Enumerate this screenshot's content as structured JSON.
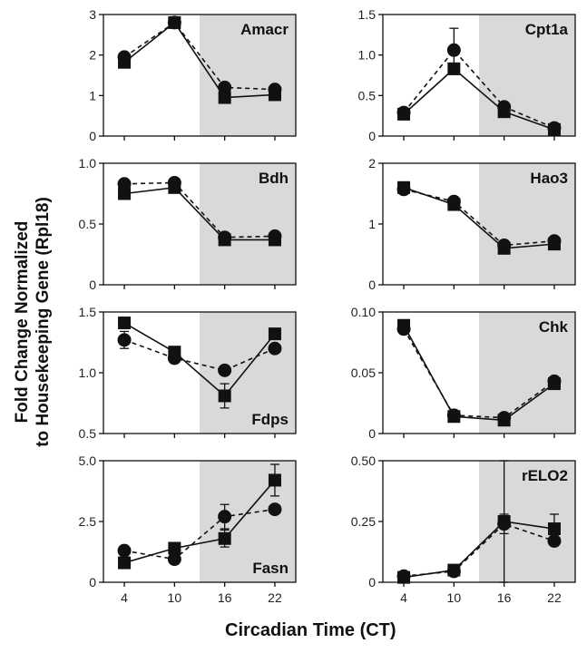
{
  "figure": {
    "ylabel_line1": "Fold Change Normalized",
    "ylabel_line2": "to Housekeeping Gene (Rpl18)",
    "xlabel": "Circadian Time (CT)"
  },
  "colors": {
    "shade": "#d9d9d9",
    "marker": "#111111",
    "line": "#111111",
    "axis": "#111111"
  },
  "chart_data": [
    {
      "type": "line",
      "title": "Amacr",
      "title_pos": "top-right",
      "x": [
        4,
        10,
        16,
        22
      ],
      "xticks": [
        "4",
        "10",
        "16",
        "22"
      ],
      "show_xticks": false,
      "ylim": [
        0,
        3
      ],
      "yticks": [
        0,
        1,
        2,
        3
      ],
      "ytick_labels": [
        "0",
        "1",
        "2",
        "3"
      ],
      "shaded_from_x": 13,
      "series": [
        {
          "marker": "square",
          "line": "solid",
          "values": [
            1.82,
            2.8,
            0.95,
            1.02
          ],
          "errors": [
            0.08,
            0.1,
            0.08,
            0.06
          ]
        },
        {
          "marker": "circle",
          "line": "dashed",
          "values": [
            1.95,
            2.8,
            1.2,
            1.15
          ],
          "errors": [
            0.06,
            0.06,
            0.06,
            0.05
          ]
        }
      ]
    },
    {
      "type": "line",
      "title": "Cpt1a",
      "title_pos": "top-right",
      "x": [
        4,
        10,
        16,
        22
      ],
      "xticks": [
        "4",
        "10",
        "16",
        "22"
      ],
      "show_xticks": false,
      "ylim": [
        0,
        1.5
      ],
      "yticks": [
        0,
        0.5,
        1.0,
        1.5
      ],
      "ytick_labels": [
        "0",
        "0.5",
        "1.0",
        "1.5"
      ],
      "shaded_from_x": 13,
      "series": [
        {
          "marker": "square",
          "line": "solid",
          "values": [
            0.27,
            0.83,
            0.3,
            0.08
          ],
          "errors": [
            0.02,
            0.07,
            0.03,
            0.02
          ]
        },
        {
          "marker": "circle",
          "line": "dashed",
          "values": [
            0.29,
            1.06,
            0.36,
            0.1
          ],
          "errors": [
            0.02,
            0.27,
            0.03,
            0.02
          ]
        }
      ]
    },
    {
      "type": "line",
      "title": "Bdh",
      "title_pos": "top-right",
      "x": [
        4,
        10,
        16,
        22
      ],
      "xticks": [
        "4",
        "10",
        "16",
        "22"
      ],
      "show_xticks": false,
      "ylim": [
        0,
        1.0
      ],
      "yticks": [
        0,
        0.5,
        1.0
      ],
      "ytick_labels": [
        "0",
        "0.5",
        "1.0"
      ],
      "shaded_from_x": 13,
      "series": [
        {
          "marker": "square",
          "line": "solid",
          "values": [
            0.75,
            0.8,
            0.37,
            0.37
          ],
          "errors": [
            0.03,
            0.03,
            0.02,
            0.02
          ]
        },
        {
          "marker": "circle",
          "line": "dashed",
          "values": [
            0.83,
            0.84,
            0.39,
            0.4
          ],
          "errors": [
            0.02,
            0.02,
            0.02,
            0.02
          ]
        }
      ]
    },
    {
      "type": "line",
      "title": "Hao3",
      "title_pos": "top-right",
      "x": [
        4,
        10,
        16,
        22
      ],
      "xticks": [
        "4",
        "10",
        "16",
        "22"
      ],
      "show_xticks": false,
      "ylim": [
        0,
        2
      ],
      "yticks": [
        0,
        1,
        2
      ],
      "ytick_labels": [
        "0",
        "1",
        "2"
      ],
      "shaded_from_x": 13,
      "series": [
        {
          "marker": "square",
          "line": "solid",
          "values": [
            1.6,
            1.32,
            0.6,
            0.67
          ],
          "errors": [
            0.04,
            0.04,
            0.04,
            0.04
          ]
        },
        {
          "marker": "circle",
          "line": "dashed",
          "values": [
            1.57,
            1.37,
            0.65,
            0.72
          ],
          "errors": [
            0.04,
            0.04,
            0.04,
            0.04
          ]
        }
      ]
    },
    {
      "type": "line",
      "title": "Fdps",
      "title_pos": "bottom-right",
      "x": [
        4,
        10,
        16,
        22
      ],
      "xticks": [
        "4",
        "10",
        "16",
        "22"
      ],
      "show_xticks": false,
      "ylim": [
        0.5,
        1.5
      ],
      "yticks": [
        0.5,
        1.0,
        1.5
      ],
      "ytick_labels": [
        "0.5",
        "1.0",
        "1.5"
      ],
      "shaded_from_x": 13,
      "series": [
        {
          "marker": "square",
          "line": "solid",
          "values": [
            1.41,
            1.17,
            0.81,
            1.32
          ],
          "errors": [
            0.03,
            0.03,
            0.1,
            0.03
          ]
        },
        {
          "marker": "circle",
          "line": "dashed",
          "values": [
            1.27,
            1.12,
            1.02,
            1.2
          ],
          "errors": [
            0.07,
            0.03,
            0.03,
            0.03
          ]
        }
      ]
    },
    {
      "type": "line",
      "title": "Chk",
      "title_pos": "top-right",
      "x": [
        4,
        10,
        16,
        22
      ],
      "xticks": [
        "4",
        "10",
        "16",
        "22"
      ],
      "show_xticks": false,
      "ylim": [
        0,
        0.1
      ],
      "yticks": [
        0,
        0.05,
        0.1
      ],
      "ytick_labels": [
        "0",
        "0.05",
        "0.10"
      ],
      "shaded_from_x": 13,
      "series": [
        {
          "marker": "square",
          "line": "solid",
          "values": [
            0.089,
            0.014,
            0.011,
            0.041
          ],
          "errors": [
            0.002,
            0.002,
            0.002,
            0.002
          ]
        },
        {
          "marker": "circle",
          "line": "dashed",
          "values": [
            0.086,
            0.015,
            0.013,
            0.043
          ],
          "errors": [
            0.002,
            0.002,
            0.002,
            0.002
          ]
        }
      ]
    },
    {
      "type": "line",
      "title": "Fasn",
      "title_pos": "bottom-right",
      "x": [
        4,
        10,
        16,
        22
      ],
      "xticks": [
        "4",
        "10",
        "16",
        "22"
      ],
      "show_xticks": true,
      "ylim": [
        0,
        5.0
      ],
      "yticks": [
        0,
        2.5,
        5.0
      ],
      "ytick_labels": [
        "0",
        "2.5",
        "5.0"
      ],
      "shaded_from_x": 13,
      "series": [
        {
          "marker": "square",
          "line": "solid",
          "values": [
            0.8,
            1.4,
            1.8,
            4.2
          ],
          "errors": [
            0.1,
            0.15,
            0.35,
            0.65
          ]
        },
        {
          "marker": "circle",
          "line": "dashed",
          "values": [
            1.3,
            0.95,
            2.7,
            3.0
          ],
          "errors": [
            0.15,
            0.1,
            0.5,
            0.15
          ]
        }
      ]
    },
    {
      "type": "line",
      "title": "rELO2",
      "title_pos": "top-right",
      "x": [
        4,
        10,
        16,
        22
      ],
      "xticks": [
        "4",
        "10",
        "16",
        "22"
      ],
      "show_xticks": true,
      "ylim": [
        0,
        0.5
      ],
      "yticks": [
        0,
        0.25,
        0.5
      ],
      "ytick_labels": [
        "0",
        "0.25",
        "0.50"
      ],
      "shaded_from_x": 13,
      "series": [
        {
          "marker": "square",
          "line": "solid",
          "values": [
            0.02,
            0.05,
            0.25,
            0.22
          ],
          "errors": [
            0.01,
            0.01,
            0.25,
            0.06
          ]
        },
        {
          "marker": "circle",
          "line": "dashed",
          "values": [
            0.025,
            0.045,
            0.24,
            0.17
          ],
          "errors": [
            0.01,
            0.01,
            0.04,
            0.02
          ]
        }
      ]
    }
  ]
}
